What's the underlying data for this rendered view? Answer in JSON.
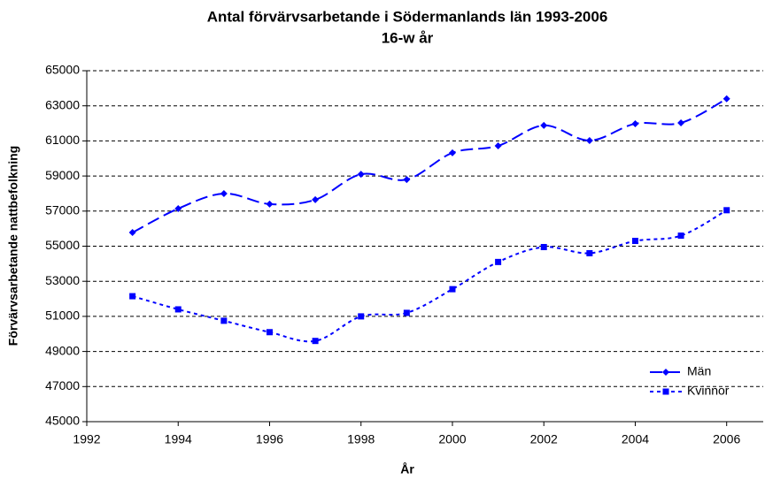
{
  "chart_data": {
    "type": "line",
    "title": "Antal förvärvsarbetande i Södermanlands län 1993-2006",
    "subtitle": "16-w år",
    "xlabel": "År",
    "ylabel": "Förvärvsarbetande nattbefolkning",
    "x": [
      1993,
      1994,
      1995,
      1996,
      1997,
      1998,
      1999,
      2000,
      2001,
      2002,
      2003,
      2004,
      2005,
      2006
    ],
    "series": [
      {
        "name": "Män",
        "color": "#0000ff",
        "marker": "diamond",
        "dash": "14 6",
        "values": [
          55780,
          57140,
          58000,
          57400,
          57650,
          59100,
          58800,
          60320,
          60720,
          61880,
          61020,
          61980,
          62030,
          63400
        ]
      },
      {
        "name": "Kvinnor",
        "color": "#0000ff",
        "marker": "square",
        "dash": "4 4",
        "values": [
          52150,
          51400,
          50750,
          50100,
          49600,
          51000,
          51200,
          52550,
          54100,
          54950,
          54600,
          55300,
          55600,
          57050
        ]
      }
    ],
    "xlim": [
      1992,
      2006.8
    ],
    "xticks": [
      1992,
      1994,
      1996,
      1998,
      2000,
      2002,
      2004,
      2006
    ],
    "ylim": [
      45000,
      65000
    ],
    "yticks": [
      45000,
      47000,
      49000,
      51000,
      53000,
      55000,
      57000,
      59000,
      61000,
      63000,
      65000
    ],
    "grid": true,
    "legend": "lower right"
  }
}
